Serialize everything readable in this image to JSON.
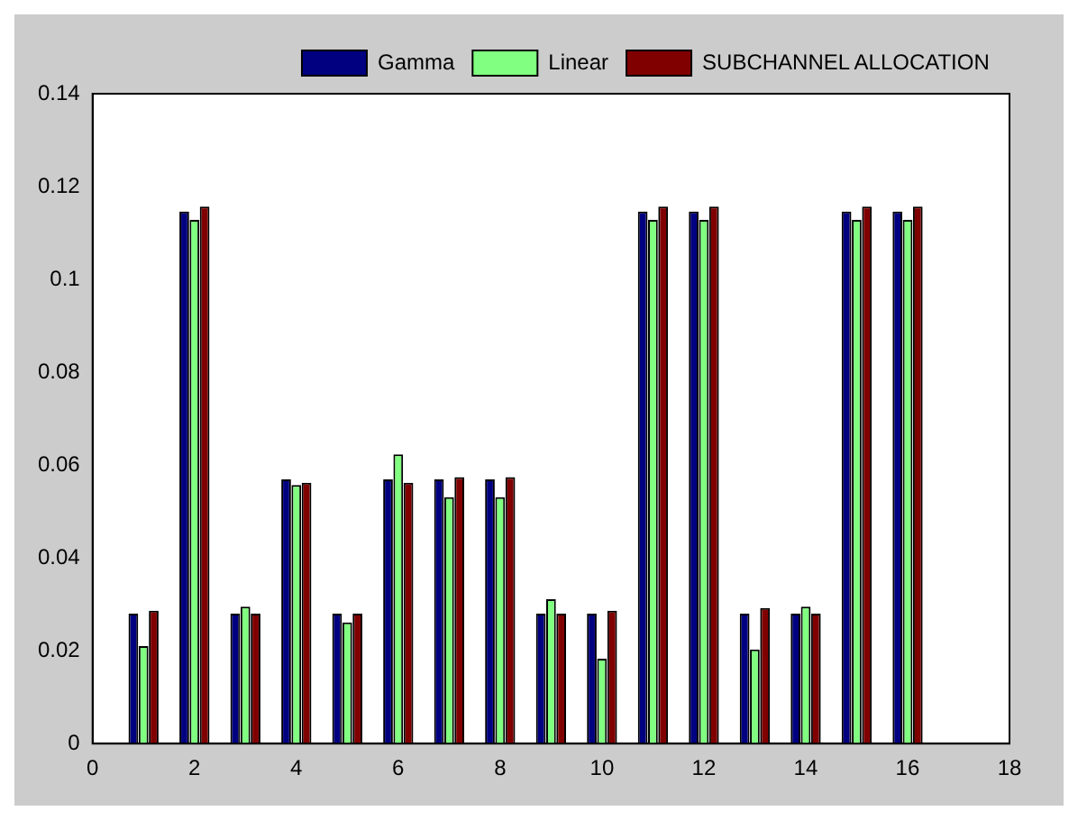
{
  "chart_data": {
    "type": "bar",
    "x": [
      1,
      2,
      3,
      4,
      5,
      6,
      7,
      8,
      9,
      10,
      11,
      12,
      13,
      14,
      15,
      16
    ],
    "series": [
      {
        "name": "Gamma",
        "color": "#000080",
        "values": [
          0.028,
          0.1146,
          0.028,
          0.0569,
          0.028,
          0.0569,
          0.0569,
          0.0569,
          0.028,
          0.028,
          0.1146,
          0.1146,
          0.028,
          0.028,
          0.1146,
          0.1146
        ]
      },
      {
        "name": "Linear",
        "color": "#80ff80",
        "values": [
          0.021,
          0.1128,
          0.0295,
          0.0557,
          0.0261,
          0.0623,
          0.0531,
          0.0531,
          0.0311,
          0.0183,
          0.1128,
          0.1128,
          0.0203,
          0.0295,
          0.1128,
          0.1128
        ]
      },
      {
        "name": "SUBCHANNEL ALLOCATION",
        "color": "#800000",
        "values": [
          0.0286,
          0.1157,
          0.028,
          0.0562,
          0.028,
          0.0562,
          0.0574,
          0.0574,
          0.028,
          0.0286,
          0.1157,
          0.1157,
          0.0292,
          0.028,
          0.1157,
          0.1157
        ]
      }
    ],
    "xlim": [
      0,
      18
    ],
    "xticks": [
      0,
      2,
      4,
      6,
      8,
      10,
      12,
      14,
      16,
      18
    ],
    "ylim": [
      0,
      0.14
    ],
    "yticks": [
      0,
      0.02,
      0.04,
      0.06,
      0.08,
      0.1,
      0.12,
      0.14
    ],
    "grid": false,
    "legend": "top right"
  }
}
